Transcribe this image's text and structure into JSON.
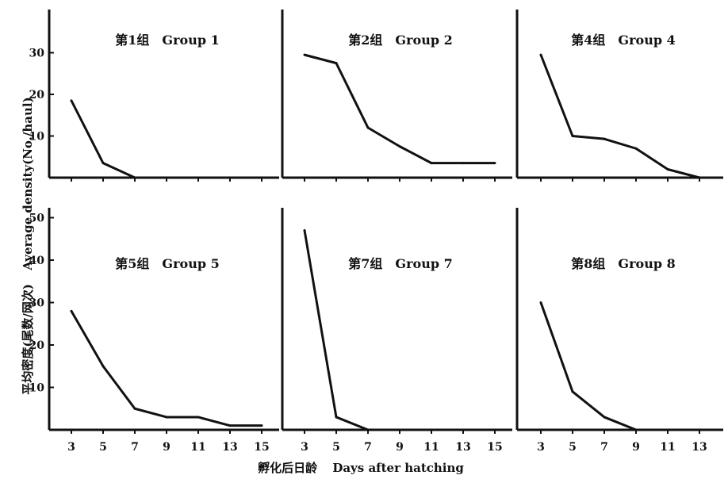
{
  "chart_data": {
    "type": "line",
    "ylabel_cn": "平均密度(尾数/网次)",
    "ylabel_en": "Average density(No./haul)",
    "xlabel_cn": "孵化后日龄",
    "xlabel_en": "Days after hatching",
    "panels": [
      {
        "title_cn": "第1组",
        "title_en": "Group 1",
        "row": 0,
        "col": 0,
        "xlim": [
          2,
          16
        ],
        "ylim": [
          0,
          38
        ],
        "xticks": [
          "3",
          "5",
          "7",
          "9",
          "11",
          "13",
          "15"
        ],
        "yticks": [
          "10",
          "20",
          "30"
        ],
        "x": [
          3,
          5,
          7
        ],
        "values": [
          18.5,
          3.5,
          0
        ]
      },
      {
        "title_cn": "第2组",
        "title_en": "Group 2",
        "row": 0,
        "col": 1,
        "xlim": [
          2,
          16
        ],
        "ylim": [
          0,
          38
        ],
        "xticks": [
          "3",
          "5",
          "7",
          "9",
          "11",
          "13",
          "15"
        ],
        "yticks": [],
        "x": [
          3,
          5,
          7,
          9,
          11,
          13,
          15
        ],
        "values": [
          29.5,
          27.5,
          12,
          7.5,
          3.5,
          3.5,
          3.5
        ]
      },
      {
        "title_cn": "第4组",
        "title_en": "Group 4",
        "row": 0,
        "col": 2,
        "xlim": [
          2,
          14
        ],
        "ylim": [
          0,
          38
        ],
        "xticks": [
          "3",
          "5",
          "7",
          "9",
          "11",
          "13"
        ],
        "yticks": [],
        "x": [
          3,
          5,
          7,
          9,
          11,
          13
        ],
        "values": [
          29.5,
          10,
          9.3,
          7,
          2,
          0
        ]
      },
      {
        "title_cn": "第5组",
        "title_en": "Group 5",
        "row": 1,
        "col": 0,
        "xlim": [
          2,
          16
        ],
        "ylim": [
          0,
          55
        ],
        "xticks": [
          "3",
          "5",
          "7",
          "9",
          "11",
          "13",
          "15"
        ],
        "yticks": [
          "10",
          "20",
          "30",
          "40",
          "50"
        ],
        "x": [
          3,
          5,
          7,
          9,
          11,
          13,
          15
        ],
        "values": [
          28,
          15,
          5,
          3,
          3,
          1,
          1
        ]
      },
      {
        "title_cn": "第7组",
        "title_en": "Group 7",
        "row": 1,
        "col": 1,
        "xlim": [
          2,
          16
        ],
        "ylim": [
          0,
          55
        ],
        "xticks": [
          "3",
          "5",
          "7",
          "9",
          "11",
          "13",
          "15"
        ],
        "yticks": [],
        "x": [
          3,
          5,
          7
        ],
        "values": [
          47,
          3,
          0
        ]
      },
      {
        "title_cn": "第8组",
        "title_en": "Group 8",
        "row": 1,
        "col": 2,
        "xlim": [
          2,
          14
        ],
        "ylim": [
          0,
          55
        ],
        "xticks": [
          "3",
          "5",
          "7",
          "9",
          "11",
          "13"
        ],
        "yticks": [],
        "x": [
          3,
          5,
          7,
          9
        ],
        "values": [
          30,
          9,
          3,
          0
        ]
      }
    ]
  }
}
